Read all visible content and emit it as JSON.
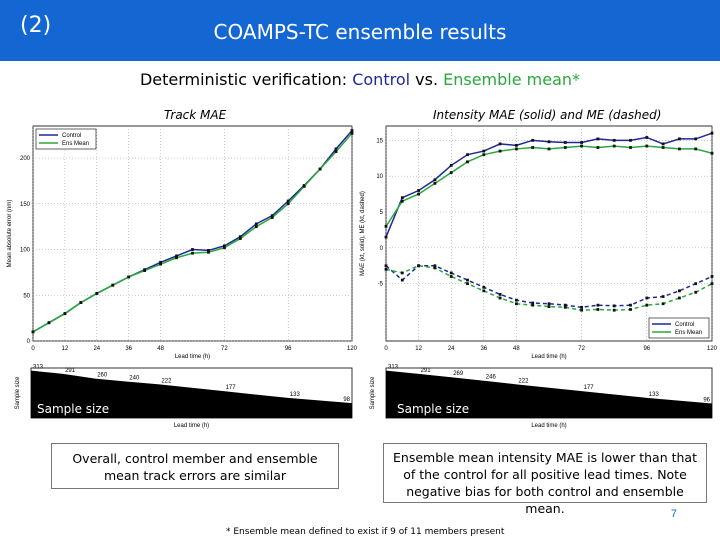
{
  "header": {
    "slide_number": "(2)",
    "title": "COAMPS-TC ensemble results"
  },
  "subtitle": {
    "prefix": "Deterministic verification: ",
    "control": "Control",
    "vs": " vs. ",
    "ensemble": "Ensemble mean*"
  },
  "panels": {
    "left_title": "Track MAE",
    "right_title": "Intensity MAE (solid) and ME (dashed)"
  },
  "sample_size_label": "Sample size",
  "captions": {
    "left": "Overall, control member and ensemble mean track errors are similar",
    "right": "Ensemble mean intensity MAE is lower than that of the control for all positive lead times. Note negative bias for both control and ensemble mean."
  },
  "page_number": "7",
  "footnote": "* Ensemble mean defined to exist if 9 of 11 members present",
  "colors": {
    "header": "#1467d3",
    "control": "#1c2a9b",
    "ensemble": "#2aa83a"
  },
  "chart_data": [
    {
      "type": "line",
      "title": "Track MAE",
      "xlabel": "Lead time (h)",
      "ylabel": "Mean absolute error (nm)",
      "xlim": [
        0,
        120
      ],
      "ylim": [
        0,
        235
      ],
      "xticks": [
        0,
        12,
        24,
        36,
        48,
        72,
        96,
        120
      ],
      "yticks": [
        0,
        50,
        100,
        150,
        200
      ],
      "legend": [
        "Control",
        "Ens Mean"
      ],
      "legend_position": "top-left",
      "grid": true,
      "x": [
        0,
        6,
        12,
        18,
        24,
        30,
        36,
        42,
        48,
        54,
        60,
        66,
        72,
        78,
        84,
        90,
        96,
        102,
        108,
        114,
        120
      ],
      "series": [
        {
          "name": "Control",
          "color": "#1c2a9b",
          "values": [
            10,
            20,
            30,
            42,
            52,
            61,
            70,
            78,
            86,
            93,
            100,
            99,
            104,
            114,
            128,
            137,
            153,
            170,
            188,
            210,
            230
          ]
        },
        {
          "name": "Ens Mean",
          "color": "#2aa83a",
          "values": [
            10,
            20,
            30,
            42,
            52,
            61,
            70,
            77,
            84,
            91,
            96,
            97,
            102,
            112,
            125,
            135,
            150,
            169,
            188,
            207,
            227
          ]
        }
      ]
    },
    {
      "type": "line",
      "title": "Intensity MAE (solid) and ME (dashed)",
      "xlabel": "Lead time (h)",
      "ylabel": "MAE (kt, solid), ME (kt, dashed)",
      "xlim": [
        0,
        120
      ],
      "ylim": [
        -13,
        17
      ],
      "xticks": [
        0,
        12,
        24,
        36,
        48,
        72,
        96,
        120
      ],
      "yticks": [
        -5,
        0,
        5,
        10,
        15
      ],
      "legend": [
        "Control",
        "Ens Mean"
      ],
      "legend_position": "bottom-right",
      "grid": true,
      "x": [
        0,
        6,
        12,
        18,
        24,
        30,
        36,
        42,
        48,
        54,
        60,
        66,
        72,
        78,
        84,
        90,
        96,
        102,
        108,
        114,
        120
      ],
      "series": [
        {
          "name": "Control MAE",
          "color": "#1c2a9b",
          "style": "solid",
          "values": [
            1.5,
            7.0,
            8.0,
            9.5,
            11.5,
            13.0,
            13.5,
            14.5,
            14.3,
            15.0,
            14.8,
            14.7,
            14.7,
            15.2,
            15.0,
            15.0,
            15.4,
            14.5,
            15.2,
            15.2,
            16.0
          ]
        },
        {
          "name": "Ens Mean MAE",
          "color": "#2aa83a",
          "style": "solid",
          "values": [
            3.0,
            6.5,
            7.5,
            9.0,
            10.5,
            12.0,
            13.0,
            13.5,
            13.8,
            14.0,
            13.8,
            14.0,
            14.2,
            14.0,
            14.2,
            14.0,
            14.2,
            14.0,
            13.8,
            13.8,
            13.2
          ]
        },
        {
          "name": "Control ME",
          "color": "#1c2a9b",
          "style": "dashed",
          "values": [
            -2.5,
            -4.5,
            -2.5,
            -2.5,
            -3.5,
            -4.5,
            -5.5,
            -6.5,
            -7.3,
            -7.7,
            -7.8,
            -8.0,
            -8.3,
            -8.0,
            -8.1,
            -8.0,
            -7.0,
            -6.8,
            -6.0,
            -5.0,
            -4.0
          ]
        },
        {
          "name": "Ens Mean ME",
          "color": "#2aa83a",
          "style": "dashed",
          "values": [
            -3.0,
            -3.5,
            -2.5,
            -2.8,
            -4.0,
            -5.0,
            -6.0,
            -7.0,
            -7.8,
            -8.0,
            -8.2,
            -8.3,
            -8.7,
            -8.6,
            -8.7,
            -8.6,
            -8.0,
            -7.8,
            -7.0,
            -6.2,
            -5.0
          ]
        }
      ]
    },
    {
      "type": "area",
      "title": "Sample size (track)",
      "ylabel": "Sample size",
      "xlabel": "Lead time (h)",
      "xlim": [
        0,
        120
      ],
      "ylim": [
        0,
        330
      ],
      "x": [
        0,
        12,
        24,
        36,
        48,
        72,
        96,
        120
      ],
      "values": [
        313,
        291,
        260,
        240,
        222,
        177,
        133,
        98
      ],
      "data_labels": [
        "313",
        "291",
        "260",
        "240",
        "222",
        "177",
        "133",
        "98"
      ]
    },
    {
      "type": "area",
      "title": "Sample size (intensity)",
      "ylabel": "Sample size",
      "xlabel": "Lead time (h)",
      "xlim": [
        0,
        120
      ],
      "ylim": [
        0,
        330
      ],
      "x": [
        0,
        12,
        24,
        36,
        48,
        72,
        96,
        120
      ],
      "values": [
        313,
        291,
        269,
        246,
        222,
        177,
        133,
        96
      ],
      "data_labels": [
        "313",
        "291",
        "269",
        "246",
        "222",
        "177",
        "133",
        "96"
      ]
    }
  ]
}
